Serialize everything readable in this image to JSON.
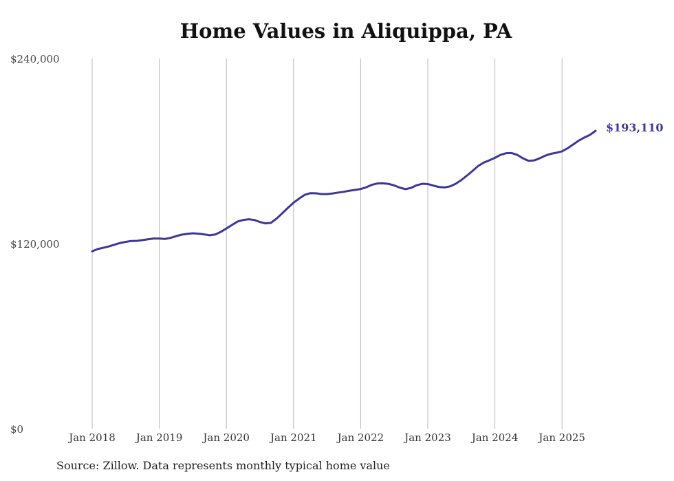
{
  "chart_data": {
    "type": "line",
    "title": "Home Values in Aliquippa, PA",
    "source": "Source: Zillow. Data represents monthly typical home value",
    "xlabel": "",
    "ylabel": "",
    "ylim": [
      0,
      240000
    ],
    "y_ticks": [
      {
        "value": 0,
        "label": "$0"
      },
      {
        "value": 120000,
        "label": "$120,000"
      },
      {
        "value": 240000,
        "label": "$240,000"
      }
    ],
    "x_ticks": [
      "Jan 2018",
      "Jan 2019",
      "Jan 2020",
      "Jan 2021",
      "Jan 2022",
      "Jan 2023",
      "Jan 2024",
      "Jan 2025"
    ],
    "x_start": "2018-01",
    "grid": "vertical",
    "line_color": "#3b3896",
    "end_label": "$193,110",
    "series": [
      {
        "values": [
          115000,
          116500,
          117300,
          118200,
          119300,
          120400,
          121100,
          121700,
          121800,
          122300,
          122800,
          123300,
          123300,
          123000,
          123700,
          124800,
          125800,
          126300,
          126700,
          126400,
          126000,
          125400,
          125900,
          127600,
          129800,
          132100,
          134300,
          135300,
          135800,
          135300,
          134000,
          133100,
          133500,
          136300,
          139700,
          143200,
          146500,
          149200,
          151600,
          152700,
          152600,
          152100,
          152100,
          152500,
          153100,
          153600,
          154300,
          154800,
          155400,
          156500,
          158100,
          159000,
          159100,
          158700,
          157700,
          156300,
          155300,
          156100,
          157800,
          158800,
          158600,
          157600,
          156700,
          156400,
          157100,
          158800,
          161200,
          164100,
          167100,
          170300,
          172500,
          174000,
          175600,
          177500,
          178600,
          178700,
          177500,
          175300,
          173700,
          173900,
          175300,
          177000,
          178200,
          178900,
          179800,
          181800,
          184300,
          186800,
          188800,
          190500,
          193110
        ]
      }
    ]
  }
}
